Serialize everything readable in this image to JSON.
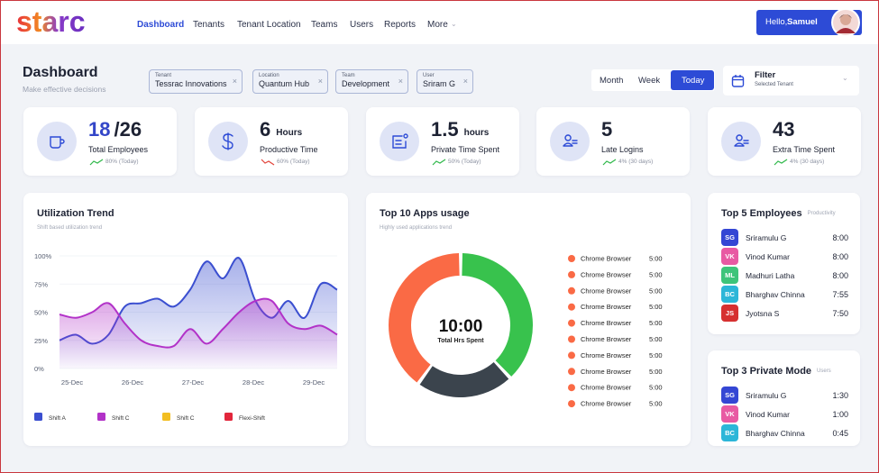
{
  "header": {
    "logo": "starc",
    "nav": [
      "Dashboard",
      "Tenants",
      "Tenant Location",
      "Teams",
      "Users",
      "Reports",
      "More"
    ],
    "greeting": "Hello,",
    "user": "Samuel"
  },
  "page": {
    "title": "Dashboard",
    "subtitle": "Make effective decisions"
  },
  "filters": [
    {
      "label": "Tenant",
      "value": "Tessrac Innovations"
    },
    {
      "label": "Location",
      "value": "Quantum Hub"
    },
    {
      "label": "Team",
      "value": "Development"
    },
    {
      "label": "User",
      "value": "Sriram G"
    }
  ],
  "periods": [
    "Month",
    "Week",
    "Today"
  ],
  "filter": {
    "title": "Filter",
    "subtitle": "Selected Tenant"
  },
  "kpis": [
    {
      "value": "18",
      "total": "/26",
      "label": "Total Employees",
      "trend": "80% (Today)",
      "trend_color": "#2fb84a"
    },
    {
      "value": "6",
      "unit": "Hours",
      "label": "Productive Time",
      "trend": "60% (Today)",
      "trend_color": "#e2443b"
    },
    {
      "value": "1.5",
      "unit": "hours",
      "label": "Private Time Spent",
      "trend": "50% (Today)",
      "trend_color": "#2fb84a"
    },
    {
      "value": "5",
      "label": "Late Logins",
      "trend": "4% (30 days)",
      "trend_color": "#2fb84a"
    },
    {
      "value": "43",
      "label": "Extra Time Spent",
      "trend": "4% (30 days)",
      "trend_color": "#2fb84a"
    }
  ],
  "utilization": {
    "title": "Utilization Trend",
    "subtitle": "Shift based utilization trend",
    "ylim": [
      0,
      100
    ],
    "yticks": [
      {
        "value": 100,
        "label": "100%"
      },
      {
        "value": 75,
        "label": "75%"
      },
      {
        "value": 50,
        "label": "50%"
      },
      {
        "value": 25,
        "label": "25%"
      },
      {
        "value": 0,
        "label": "0%"
      }
    ],
    "xticks": [
      "25-Dec",
      "26-Dec",
      "27-Dec",
      "28-Dec",
      "29-Dec"
    ],
    "legend": [
      {
        "name": "Shift A",
        "color": "#3b4fd0",
        "values": [
          25,
          30,
          22,
          30,
          55,
          58,
          62,
          55,
          70,
          95,
          80,
          98,
          60,
          45,
          60,
          45,
          75,
          70
        ]
      },
      {
        "name": "Shift C",
        "color": "#b232c8",
        "values": [
          48,
          45,
          50,
          58,
          40,
          25,
          20,
          20,
          35,
          22,
          35,
          50,
          60,
          60,
          40,
          35,
          38,
          30
        ]
      },
      {
        "name": "Shift C",
        "color": "#f2be22"
      },
      {
        "name": "Flexi-Shift",
        "color": "#e2263b"
      }
    ]
  },
  "apps": {
    "title": "Top 10 Apps usage",
    "subtitle": "Highly used applications trend",
    "center_value": "10:00",
    "center_label": "Total Hrs Spent",
    "segments": [
      {
        "color": "#38c24d",
        "value": 38
      },
      {
        "color": "#3b444d",
        "value": 22
      },
      {
        "color": "#fa6a45",
        "value": 40
      }
    ],
    "items": [
      {
        "name": "Chrome Browser",
        "time": "5:00"
      },
      {
        "name": "Chrome Browser",
        "time": "5:00"
      },
      {
        "name": "Chrome Browser",
        "time": "5:00"
      },
      {
        "name": "Chrome Browser",
        "time": "5:00"
      },
      {
        "name": "Chrome Browser",
        "time": "5:00"
      },
      {
        "name": "Chrome Browser",
        "time": "5:00"
      },
      {
        "name": "Chrome Browser",
        "time": "5:00"
      },
      {
        "name": "Chrome Browser",
        "time": "5:00"
      },
      {
        "name": "Chrome Browser",
        "time": "5:00"
      },
      {
        "name": "Chrome Browser",
        "time": "5:00"
      }
    ]
  },
  "top_employees": {
    "title": "Top 5 Employees",
    "tag": "Productivity",
    "rows": [
      {
        "initials": "SG",
        "name": "Sriramulu G",
        "time": "8:00",
        "color": "#3446d4"
      },
      {
        "initials": "VK",
        "name": "Vinod Kumar",
        "time": "8:00",
        "color": "#e85aa3"
      },
      {
        "initials": "ML",
        "name": "Madhuri Latha",
        "time": "8:00",
        "color": "#3ec47a"
      },
      {
        "initials": "BC",
        "name": "Bharghav Chinna",
        "time": "7:55",
        "color": "#2cb6d8"
      },
      {
        "initials": "JS",
        "name": "Jyotsna S",
        "time": "7:50",
        "color": "#d63030"
      }
    ]
  },
  "private_mode": {
    "title": "Top 3 Private Mode",
    "tag": "Users",
    "rows": [
      {
        "initials": "SG",
        "name": "Sriramulu G",
        "time": "1:30",
        "color": "#3446d4"
      },
      {
        "initials": "VK",
        "name": "Vinod Kumar",
        "time": "1:00",
        "color": "#e85aa3"
      },
      {
        "initials": "BC",
        "name": "Bharghav Chinna",
        "time": "0:45",
        "color": "#2cb6d8"
      }
    ]
  }
}
